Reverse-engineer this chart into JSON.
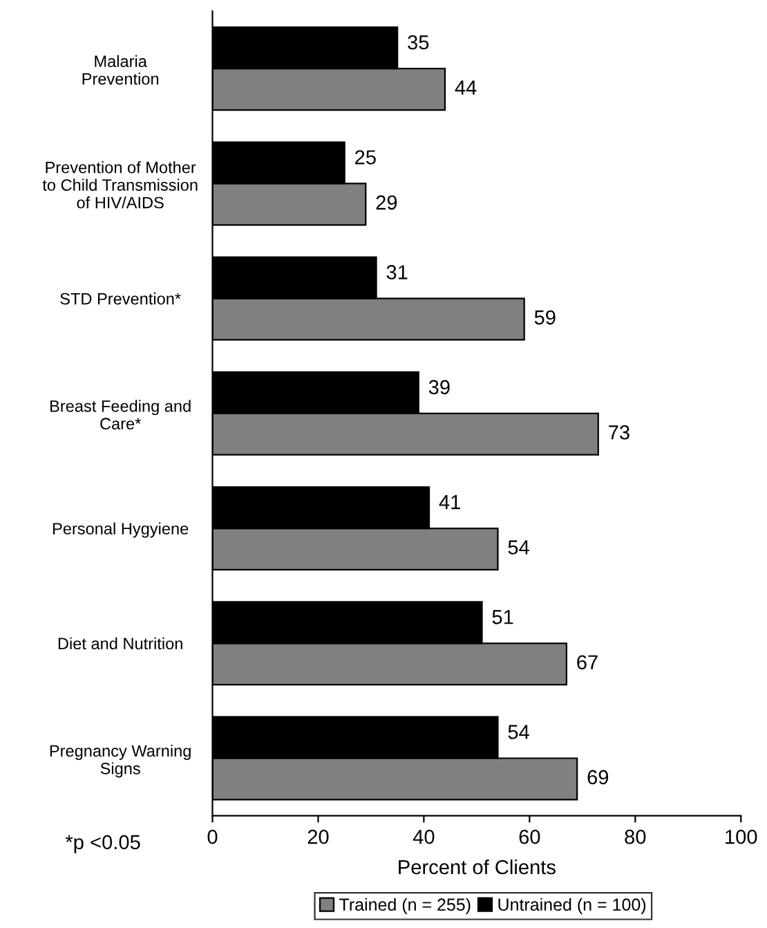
{
  "chart_data": {
    "type": "bar",
    "orientation": "horizontal",
    "xlabel": "Percent of Clients",
    "categories": [
      "Malaria\nPrevention",
      "Prevention of Mother\nto Child Transmission\nof HIV/AIDS",
      "STD Prevention*",
      "Breast Feeding and\nCare*",
      "Personal Hygyiene",
      "Diet and Nutrition",
      "Pregnancy Warning\nSigns"
    ],
    "series": [
      {
        "name": "Trained (n = 255)",
        "color": "#808080",
        "values": [
          44,
          29,
          59,
          73,
          54,
          67,
          69
        ]
      },
      {
        "name": "Untrained (n = 100)",
        "color": "#000000",
        "values": [
          35,
          25,
          31,
          39,
          41,
          51,
          54
        ]
      }
    ],
    "xlim": [
      0,
      100
    ],
    "xticks": [
      0,
      20,
      40,
      60,
      80,
      100
    ],
    "grid": false,
    "legend": "bottom",
    "data_labels": true,
    "annotations": [
      "*p <0.05"
    ]
  }
}
